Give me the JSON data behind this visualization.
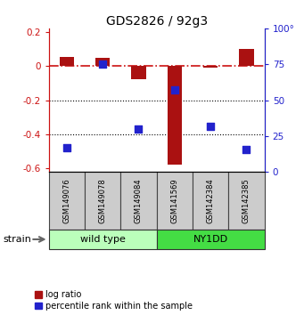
{
  "title": "GDS2826 / 92g3",
  "samples": [
    "GSM149076",
    "GSM149078",
    "GSM149084",
    "GSM141569",
    "GSM142384",
    "GSM142385"
  ],
  "log_ratios": [
    0.055,
    0.05,
    -0.08,
    -0.58,
    -0.01,
    0.1
  ],
  "percentile_ranks": [
    17,
    75,
    30,
    57,
    31.5,
    15.5
  ],
  "groups": [
    {
      "label": "wild type",
      "start": 0,
      "end": 3,
      "color": "#bbffbb"
    },
    {
      "label": "NY1DD",
      "start": 3,
      "end": 6,
      "color": "#44dd44"
    }
  ],
  "ylim_left": [
    -0.62,
    0.22
  ],
  "ylim_right": [
    0,
    100
  ],
  "yticks_left": [
    -0.6,
    -0.4,
    -0.2,
    0.0,
    0.2
  ],
  "yticks_right": [
    0,
    25,
    50,
    75,
    100
  ],
  "bar_color": "#aa1111",
  "dot_color": "#2222cc",
  "hline_color": "#cc1111",
  "grid_color": "#000000",
  "background_color": "#ffffff",
  "bar_width": 0.4,
  "dot_size": 35,
  "legend_items": [
    "log ratio",
    "percentile rank within the sample"
  ]
}
